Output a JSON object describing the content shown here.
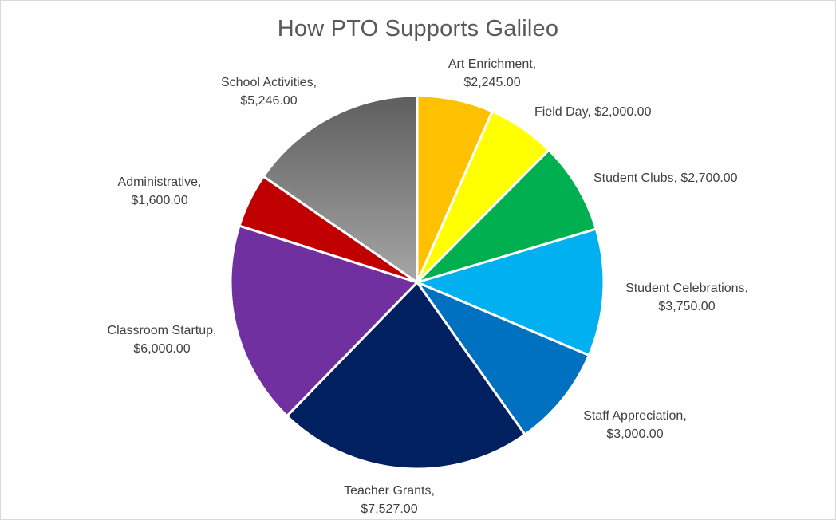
{
  "chart_data": {
    "type": "pie",
    "title": "How PTO Supports Galileo",
    "slices": [
      {
        "name": "Art Enrichment",
        "value": 2245.0,
        "value_label": "$2,245.00",
        "color": "#ffc000",
        "lines": [
          "Art Enrichment,",
          "$2,245.00"
        ]
      },
      {
        "name": "Field Day",
        "value": 2000.0,
        "value_label": "$2,000.00",
        "color": "#ffff00",
        "lines": [
          "Field Day, $2,000.00"
        ]
      },
      {
        "name": "Student Clubs",
        "value": 2700.0,
        "value_label": "$2,700.00",
        "color": "#00b050",
        "lines": [
          "Student Clubs, $2,700.00"
        ]
      },
      {
        "name": "Student Celebrations",
        "value": 3750.0,
        "value_label": "$3,750.00",
        "color": "#00b0f0",
        "lines": [
          "Student Celebrations,",
          "$3,750.00"
        ]
      },
      {
        "name": "Staff Appreciation",
        "value": 3000.0,
        "value_label": "$3,000.00",
        "color": "#0070c0",
        "lines": [
          "Staff Appreciation,",
          "$3,000.00"
        ]
      },
      {
        "name": "Teacher Grants",
        "value": 7527.0,
        "value_label": "$7,527.00",
        "color": "#002060",
        "lines": [
          "Teacher Grants,",
          "$7,527.00"
        ]
      },
      {
        "name": "Classroom Startup",
        "value": 6000.0,
        "value_label": "$6,000.00",
        "color": "#7030a0",
        "lines": [
          "Classroom Startup,",
          "$6,000.00"
        ]
      },
      {
        "name": "Administrative",
        "value": 1600.0,
        "value_label": "$1,600.00",
        "color": "#c00000",
        "lines": [
          "Administrative,",
          "$1,600.00"
        ]
      },
      {
        "name": "School Activities",
        "value": 5246.0,
        "value_label": "$5,246.00",
        "color": "gradient-gray",
        "lines": [
          "School Activities,",
          "$5,246.00"
        ]
      }
    ],
    "start_angle": "12 o'clock",
    "direction": "clockwise",
    "legend": "none",
    "data_labels": "outside-end"
  }
}
